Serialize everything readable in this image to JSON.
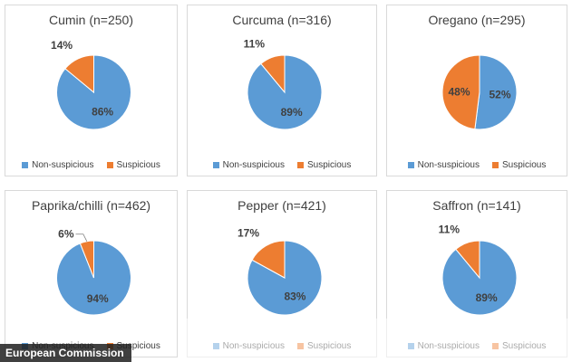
{
  "colors": {
    "non_suspicious": "#5b9bd5",
    "suspicious": "#ed7d31",
    "label_text": "#404040",
    "inner_label_text": "#404040"
  },
  "chart_data": [
    {
      "type": "pie",
      "title": "Cumin (n=250)",
      "categories": [
        "Non-suspicious",
        "Suspicious"
      ],
      "values": [
        86,
        14
      ],
      "labels": [
        "86%",
        "14%"
      ],
      "legend_placement": "bottom"
    },
    {
      "type": "pie",
      "title": "Curcuma (n=316)",
      "categories": [
        "Non-suspicious",
        "Suspicious"
      ],
      "values": [
        89,
        11
      ],
      "labels": [
        "89%",
        "11%"
      ],
      "legend_placement": "bottom"
    },
    {
      "type": "pie",
      "title": "Oregano (n=295)",
      "categories": [
        "Non-suspicious",
        "Suspicious"
      ],
      "values": [
        52,
        48
      ],
      "labels": [
        "52%",
        "48%"
      ],
      "legend_placement": "bottom"
    },
    {
      "type": "pie",
      "title": "Paprika/chilli (n=462)",
      "categories": [
        "Non-suspicious",
        "Suspicious"
      ],
      "values": [
        94,
        6
      ],
      "labels": [
        "94%",
        "6%"
      ],
      "legend_placement": "bottom"
    },
    {
      "type": "pie",
      "title": "Pepper (n=421)",
      "categories": [
        "Non-suspicious",
        "Suspicious"
      ],
      "values": [
        83,
        17
      ],
      "labels": [
        "83%",
        "17%"
      ],
      "legend_placement": "bottom"
    },
    {
      "type": "pie",
      "title": "Saffron (n=141)",
      "categories": [
        "Non-suspicious",
        "Suspicious"
      ],
      "values": [
        89,
        11
      ],
      "labels": [
        "89%",
        "11%"
      ],
      "legend_placement": "bottom"
    }
  ],
  "credit": "European Commission"
}
